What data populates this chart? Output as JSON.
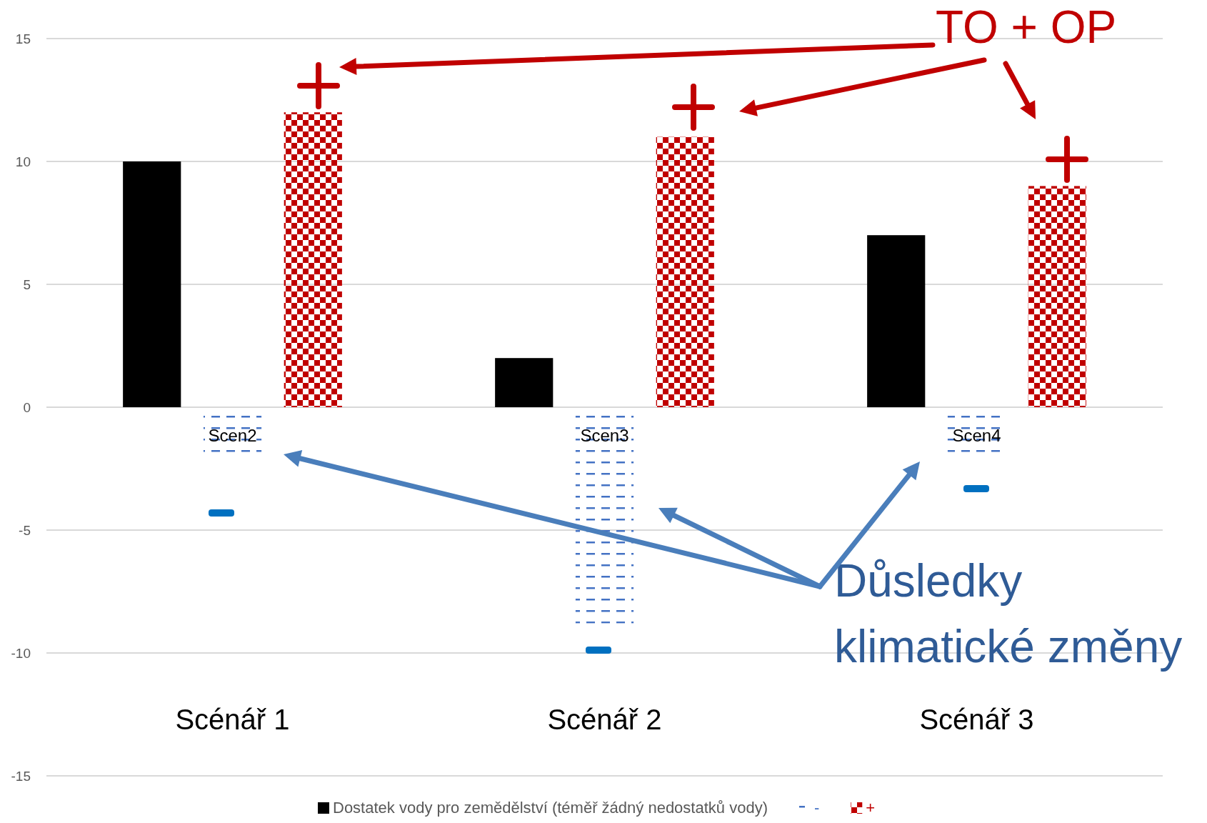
{
  "chart_data": {
    "type": "bar",
    "categories": [
      "Scénář 1",
      "Scénář 2",
      "Scénář 3"
    ],
    "series": [
      {
        "name": "Dostatek vody pro zemědělství (téměř žádný nedostatků vody)",
        "color": "#000000",
        "values": [
          10,
          2,
          7
        ]
      },
      {
        "name": "-",
        "color": "#4472c4",
        "values": [
          -2,
          -8.8,
          -2
        ],
        "value_labels": [
          "Scen2",
          "Scen3",
          "Scen4"
        ]
      },
      {
        "name": "+",
        "color": "#c00000",
        "values": [
          12,
          11,
          9
        ]
      }
    ],
    "ylim": [
      -15,
      15
    ],
    "yticks": [
      -15,
      -10,
      -5,
      0,
      5,
      10,
      15
    ],
    "grid": "y",
    "legend": "bottom",
    "annotations": [
      "TO + OP",
      "Důsledky\nklimatické změny"
    ]
  }
}
